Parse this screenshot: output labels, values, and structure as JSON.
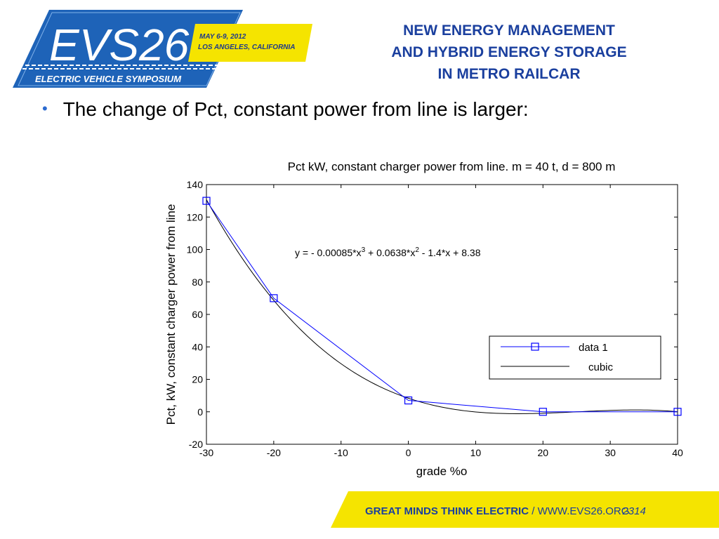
{
  "header": {
    "logo": {
      "name": "EVS26",
      "date": "MAY 6-9, 2012",
      "location": "LOS ANGELES, CALIFORNIA",
      "tagline": "ELECTRIC VEHICLE SYMPOSIUM"
    },
    "title_lines": [
      "NEW ENERGY MANAGEMENT",
      "AND  HYBRID ENERGY STORAGE",
      "IN METRO RAILCAR"
    ]
  },
  "bullet": "The change of Pct, constant power from line is larger:",
  "footer": {
    "slogan": "GREAT MINDS THINK ELECTRIC",
    "separator": "/",
    "url": "WWW.EVS26.ORG",
    "page": "2314"
  },
  "colors": {
    "title_blue": "#1a3f9e",
    "logo_blue": "#1e63b8",
    "logo_yellow": "#f5e400",
    "data_series": "#0000ff",
    "fit_series": "#000000"
  },
  "chart_data": {
    "type": "line",
    "title": "Pct kW, constant charger power from line. m = 40 t, d = 800 m",
    "xlabel": "grade %o",
    "ylabel": "Pct, kW,  constant charger power from line",
    "xlim": [
      -30,
      40
    ],
    "ylim": [
      -20,
      140
    ],
    "xticks": [
      -30,
      -20,
      -10,
      0,
      10,
      20,
      30,
      40
    ],
    "yticks": [
      -20,
      0,
      20,
      40,
      60,
      80,
      100,
      120,
      140
    ],
    "annotation": "y = - 0.00085*x^3 + 0.0638*x^2 - 1.4*x + 8.38",
    "grid": false,
    "legend_position": "right",
    "series": [
      {
        "name": "data 1",
        "marker": "square",
        "color": "#0000ff",
        "x": [
          -30,
          -20,
          0,
          20,
          40
        ],
        "y": [
          130,
          70,
          7,
          0,
          0
        ]
      },
      {
        "name": "cubic",
        "marker": "none",
        "color": "#000000",
        "coefficients": [
          -0.00085,
          0.0638,
          -1.4,
          8.38
        ],
        "x_range": [
          -30,
          40
        ]
      }
    ]
  }
}
